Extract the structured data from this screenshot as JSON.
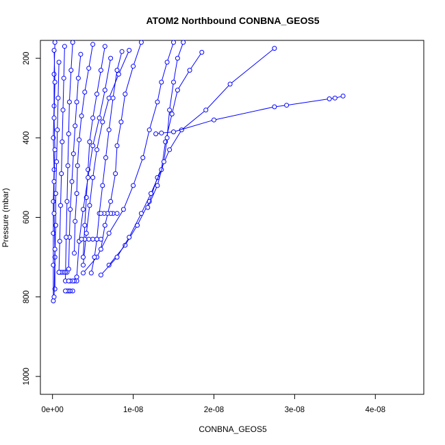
{
  "chart_data": {
    "type": "scatter",
    "title": "ATOM2 Northbound CONBNA_GEOS5",
    "xlabel": "CONBNA_GEOS5",
    "ylabel": "Pressure (mbar)",
    "xlim": [
      -1.5e-09,
      4.6e-08
    ],
    "ylim": [
      1045,
      155
    ],
    "y_reversed": true,
    "x_ticks": [
      0,
      1e-08,
      2e-08,
      3e-08,
      4e-08
    ],
    "x_tick_labels": [
      "0e+00",
      "1e-08",
      "2e-08",
      "3e-08",
      "4e-08"
    ],
    "y_ticks": [
      200,
      400,
      600,
      800,
      1000
    ],
    "y_tick_labels": [
      "200",
      "400",
      "600",
      "800",
      "1000"
    ],
    "colors": {
      "series": "#0000ff",
      "axis": "#000000"
    },
    "marker": "open-circle",
    "line": "connected",
    "series": [
      {
        "x": [
          1.5e-08,
          1.42e-08,
          1.35e-08,
          1.3e-08,
          1.2e-08,
          1.12e-08,
          1e-08,
          8.8e-09,
          7e-09,
          5.5e-09,
          3.8e-09
        ],
        "y": [
          160,
          210,
          260,
          310,
          380,
          450,
          520,
          580,
          640,
          700,
          740
        ]
      },
      {
        "x": [
          2.75e-08,
          2.2e-08,
          1.9e-08,
          1.6e-08,
          1.45e-08,
          1.3e-08,
          1.2e-08,
          1.05e-08,
          9e-09,
          7e-09
        ],
        "y": [
          175,
          265,
          330,
          380,
          430,
          500,
          560,
          620,
          670,
          720
        ]
      },
      {
        "x": [
          3.6e-08,
          3.5e-08,
          3.43e-08,
          2.9e-08,
          2.75e-08,
          2e-08,
          1.5e-08,
          1.35e-08,
          1.28e-08
        ],
        "y": [
          295,
          300,
          302,
          318,
          322,
          355,
          385,
          388,
          390
        ]
      },
      {
        "x": [
          1.85e-08,
          1.7e-08,
          1.55e-08,
          1.48e-08,
          1.4e-08,
          1.35e-08,
          1.22e-08,
          1.1e-08,
          9.5e-09,
          8e-09,
          6e-09
        ],
        "y": [
          185,
          230,
          280,
          340,
          410,
          480,
          540,
          590,
          650,
          700,
          745
        ]
      },
      {
        "x": [
          1.1e-08,
          1e-08,
          9e-09,
          8.5e-09,
          8e-09,
          7.8e-09,
          7.2e-09,
          6.5e-09,
          6e-09
        ],
        "y": [
          160,
          220,
          290,
          360,
          420,
          490,
          560,
          620,
          680
        ]
      },
      {
        "x": [
          9.5e-09,
          8.2e-09,
          7e-09,
          6.2e-09,
          5.5e-09,
          5e-09,
          4.6e-09,
          4.2e-09,
          3.8e-09
        ],
        "y": [
          180,
          240,
          300,
          360,
          430,
          500,
          570,
          640,
          720
        ]
      },
      {
        "x": [
          6.5e-09,
          6e-09,
          5.5e-09,
          5e-09,
          4.6e-09,
          4.4e-09,
          4.2e-09,
          4e-09,
          3.8e-09
        ],
        "y": [
          170,
          230,
          290,
          350,
          410,
          480,
          550,
          620,
          700
        ]
      },
      {
        "x": [
          5e-09,
          4.5e-09,
          4e-09,
          3.6e-09,
          3.3e-09,
          3.1e-09,
          3e-09,
          2.8e-09,
          2.7e-09
        ],
        "y": [
          165,
          225,
          285,
          345,
          405,
          470,
          540,
          610,
          690
        ]
      },
      {
        "x": [
          3.5e-09,
          3.2e-09,
          3e-09,
          2.8e-09,
          2.6e-09,
          2.4e-09,
          2.2e-09,
          2.1e-09,
          2e-09
        ],
        "y": [
          190,
          250,
          310,
          370,
          440,
          510,
          580,
          650,
          730
        ]
      },
      {
        "x": [
          7.2e-09,
          6.5e-09,
          5.8e-09,
          5e-09,
          4.4e-09,
          3.8e-09,
          3.3e-09,
          3e-09
        ],
        "y": [
          200,
          280,
          350,
          420,
          500,
          580,
          660,
          750
        ]
      },
      {
        "x": [
          8.6e-09,
          8e-09,
          7.5e-09,
          7e-09,
          6.6e-09,
          6.2e-09,
          5.8e-09,
          5.5e-09,
          5.2e-09,
          4.8e-09
        ],
        "y": [
          183,
          230,
          300,
          380,
          450,
          520,
          590,
          655,
          700,
          740
        ]
      },
      {
        "x": [
          2.5e-09,
          2.3e-09,
          2.1e-09,
          2e-09,
          1.9e-09,
          1.8e-09,
          1.7e-09,
          1.6e-09
        ],
        "y": [
          160,
          230,
          310,
          390,
          470,
          560,
          650,
          760
        ]
      },
      {
        "x": [
          1.5e-09,
          1.4e-09,
          1.3e-09,
          1.2e-09,
          1.1e-09,
          1e-09,
          9e-10,
          8e-10
        ],
        "y": [
          170,
          250,
          330,
          410,
          490,
          570,
          660,
          738
        ]
      },
      {
        "x": [
          8e-10,
          7e-10,
          6e-10,
          5e-10,
          4e-10,
          4e-10,
          3e-10,
          3e-10
        ],
        "y": [
          210,
          300,
          380,
          460,
          540,
          620,
          700,
          780
        ]
      },
      {
        "x": [
          3e-10,
          2e-10,
          2e-10,
          1e-10,
          2e-10,
          1e-10,
          1e-10,
          1e-10,
          1e-10
        ],
        "y": [
          160,
          240,
          320,
          400,
          480,
          560,
          640,
          720,
          810
        ]
      },
      {
        "x": [
          2e-10,
          3e-10,
          2e-10,
          3e-10,
          2e-10,
          2e-10,
          3e-10,
          2e-10
        ],
        "y": [
          180,
          260,
          350,
          430,
          510,
          590,
          680,
          800
        ]
      },
      {
        "x": [
          8e-09,
          7.5e-09,
          7.2e-09,
          6.8e-09,
          6.4e-09,
          6e-09
        ],
        "y": [
          590,
          590,
          590,
          590,
          590,
          590
        ]
      },
      {
        "x": [
          6e-09,
          5.5e-09,
          5e-09,
          4.5e-09,
          4e-09,
          3.6e-09
        ],
        "y": [
          655,
          655,
          655,
          655,
          655,
          655
        ]
      },
      {
        "x": [
          2.5e-09,
          2.2e-09,
          2e-09,
          1.8e-09,
          1.6e-09
        ],
        "y": [
          785,
          785,
          785,
          785,
          785
        ]
      },
      {
        "x": [
          1.8e-09,
          1.6e-09,
          1.4e-09,
          1.2e-09,
          1e-09,
          8e-10
        ],
        "y": [
          738,
          738,
          738,
          738,
          738,
          738
        ]
      },
      {
        "x": [
          3e-09,
          2.7e-09,
          2.5e-09,
          2.2e-09,
          2e-09
        ],
        "y": [
          760,
          760,
          760,
          760,
          760
        ]
      },
      {
        "x": [
          1.62e-08,
          1.55e-08,
          1.5e-08,
          1.45e-08,
          1.42e-08,
          1.38e-08,
          1.3e-08,
          1.18e-08
        ],
        "y": [
          160,
          200,
          260,
          330,
          400,
          460,
          520,
          575
        ]
      }
    ]
  }
}
